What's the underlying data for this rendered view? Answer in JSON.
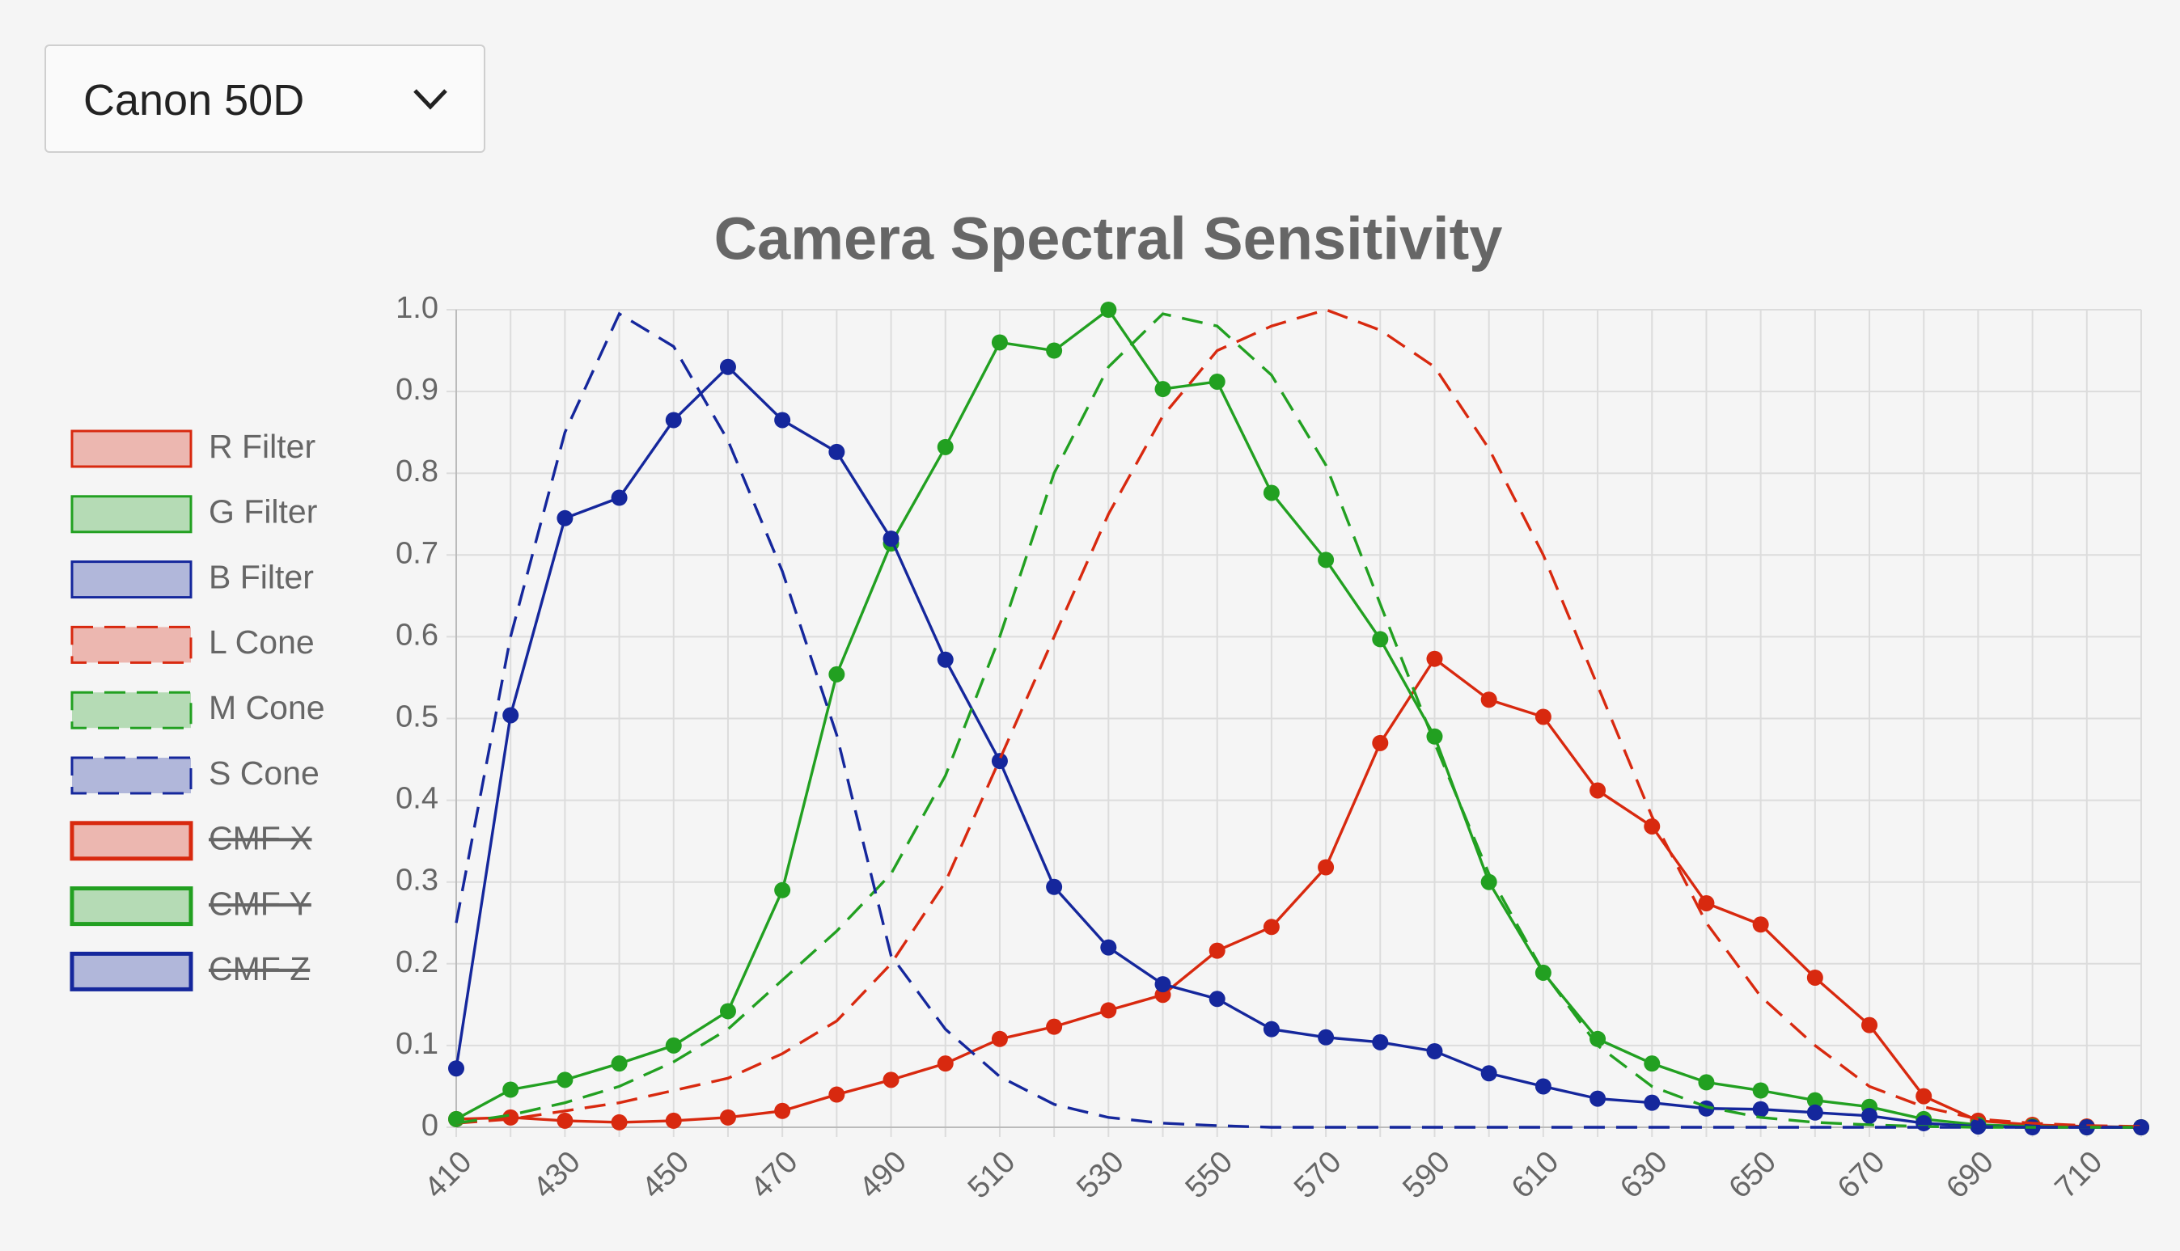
{
  "dropdown": {
    "selected": "Canon 50D"
  },
  "chart_data": {
    "type": "line",
    "title": "Camera Spectral Sensitivity",
    "x": [
      410,
      420,
      430,
      440,
      450,
      460,
      470,
      480,
      490,
      500,
      510,
      520,
      530,
      540,
      550,
      560,
      570,
      580,
      590,
      600,
      610,
      620,
      630,
      640,
      650,
      660,
      670,
      680,
      690,
      700,
      710,
      720
    ],
    "xlim": [
      410,
      720
    ],
    "xticks": [
      410,
      430,
      450,
      470,
      490,
      510,
      530,
      550,
      570,
      590,
      610,
      630,
      650,
      670,
      690,
      710
    ],
    "ylim": [
      0,
      1
    ],
    "yticks": [
      0,
      0.1,
      0.2,
      0.3,
      0.4,
      0.5,
      0.6,
      0.7,
      0.8,
      0.9,
      {
        "value": 1,
        "label": "1.0"
      }
    ],
    "grid": true,
    "legend": "left",
    "series": [
      {
        "name": "R Filter",
        "color": "#d8290f",
        "dashed": false,
        "points": true,
        "values": [
          0.01,
          0.012,
          0.008,
          0.006,
          0.008,
          0.012,
          0.02,
          0.04,
          0.058,
          0.078,
          0.108,
          0.123,
          0.143,
          0.162,
          0.216,
          0.245,
          0.318,
          0.47,
          0.573,
          0.523,
          0.502,
          0.412,
          0.368,
          0.274,
          0.248,
          0.183,
          0.125,
          0.038,
          0.008,
          0.003,
          0.001,
          0
        ]
      },
      {
        "name": "G Filter",
        "color": "#22a021",
        "dashed": false,
        "points": true,
        "values": [
          0.01,
          0.046,
          0.058,
          0.078,
          0.1,
          0.142,
          0.29,
          0.554,
          0.714,
          0.832,
          0.96,
          0.95,
          1.0,
          0.903,
          0.912,
          0.776,
          0.694,
          0.597,
          0.478,
          0.3,
          0.189,
          0.108,
          0.078,
          0.055,
          0.045,
          0.033,
          0.025,
          0.01,
          0.003,
          0.001,
          0,
          0
        ]
      },
      {
        "name": "B Filter",
        "color": "#15279c",
        "dashed": false,
        "points": true,
        "values": [
          0.072,
          0.504,
          0.745,
          0.77,
          0.865,
          0.93,
          0.865,
          0.826,
          0.72,
          0.572,
          0.448,
          0.294,
          0.22,
          0.175,
          0.157,
          0.12,
          0.11,
          0.104,
          0.093,
          0.066,
          0.05,
          0.035,
          0.03,
          0.023,
          0.022,
          0.018,
          0.014,
          0.005,
          0.001,
          0,
          0,
          0
        ]
      },
      {
        "name": "L Cone",
        "color": "#d8290f",
        "dashed": true,
        "points": false,
        "values": [
          0.005,
          0.01,
          0.02,
          0.03,
          0.045,
          0.06,
          0.09,
          0.13,
          0.2,
          0.3,
          0.45,
          0.6,
          0.75,
          0.87,
          0.95,
          0.98,
          1.0,
          0.975,
          0.93,
          0.83,
          0.7,
          0.54,
          0.38,
          0.25,
          0.16,
          0.1,
          0.05,
          0.025,
          0.01,
          0.005,
          0.002,
          0.001
        ]
      },
      {
        "name": "M Cone",
        "color": "#22a021",
        "dashed": true,
        "points": false,
        "values": [
          0.005,
          0.015,
          0.03,
          0.05,
          0.08,
          0.12,
          0.18,
          0.24,
          0.31,
          0.43,
          0.6,
          0.8,
          0.93,
          0.995,
          0.98,
          0.92,
          0.81,
          0.64,
          0.47,
          0.31,
          0.19,
          0.1,
          0.05,
          0.025,
          0.012,
          0.006,
          0.003,
          0.001,
          0,
          0,
          0,
          0
        ]
      },
      {
        "name": "S Cone",
        "color": "#15279c",
        "dashed": true,
        "points": false,
        "values": [
          0.25,
          0.6,
          0.85,
          0.995,
          0.955,
          0.84,
          0.68,
          0.48,
          0.21,
          0.12,
          0.062,
          0.028,
          0.012,
          0.005,
          0.002,
          0,
          0,
          0,
          0,
          0,
          0,
          0,
          0,
          0,
          0,
          0,
          0,
          0,
          0,
          0,
          0,
          0
        ]
      },
      {
        "name": "CMF X",
        "color": "#d8290f",
        "dashed": false,
        "points": false,
        "hidden": true
      },
      {
        "name": "CMF Y",
        "color": "#22a021",
        "dashed": false,
        "points": false,
        "hidden": true
      },
      {
        "name": "CMF Z",
        "color": "#15279c",
        "dashed": false,
        "points": false,
        "hidden": true
      }
    ]
  }
}
